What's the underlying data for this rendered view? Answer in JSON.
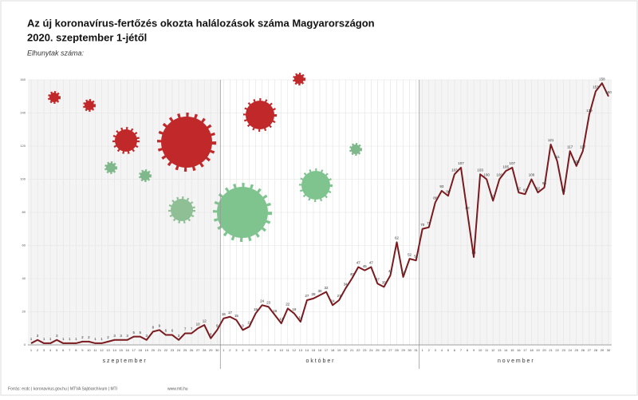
{
  "chart_data": {
    "type": "line",
    "title": [
      "Az új koronavírus-fertőzés okozta halálozások száma Magyarországon",
      "2020. szeptember 1-jétől"
    ],
    "y_label": "Elhunytak száma:",
    "categories": [
      "1",
      "2",
      "3",
      "4",
      "5",
      "6",
      "7",
      "8",
      "9",
      "10",
      "11",
      "12",
      "13",
      "14",
      "15",
      "16",
      "17",
      "18",
      "19",
      "20",
      "21",
      "22",
      "23",
      "24",
      "25",
      "26",
      "27",
      "28",
      "29",
      "30",
      "1",
      "2",
      "3",
      "4",
      "5",
      "6",
      "7",
      "8",
      "9",
      "10",
      "11",
      "12",
      "13",
      "14",
      "15",
      "16",
      "17",
      "18",
      "19",
      "20",
      "21",
      "22",
      "23",
      "24",
      "25",
      "26",
      "27",
      "28",
      "29",
      "30",
      "31",
      "1",
      "2",
      "3",
      "4",
      "5",
      "6",
      "7",
      "8",
      "9",
      "10",
      "11",
      "12",
      "13",
      "14",
      "15",
      "16",
      "17",
      "18",
      "19",
      "20",
      "21",
      "22",
      "23",
      "24",
      "25",
      "26",
      "27",
      "28",
      "29",
      "30"
    ],
    "months": [
      "s z e p t e m b e r",
      "o k t ó b e r",
      "n o v e m b e r"
    ],
    "series": [
      {
        "name": "Elhunytak",
        "color": "#7a1a1e",
        "values": [
          1,
          3,
          1,
          1,
          3,
          1,
          1,
          1,
          2,
          2,
          1,
          1,
          2,
          3,
          3,
          3,
          5,
          5,
          3,
          8,
          9,
          6,
          6,
          3,
          7,
          7,
          10,
          12,
          4,
          9,
          16,
          17,
          15,
          9,
          11,
          19,
          24,
          23,
          18,
          13,
          22,
          19,
          14,
          27,
          28,
          30,
          32,
          24,
          27,
          34,
          40,
          47,
          45,
          47,
          37,
          35,
          42,
          62,
          41,
          52,
          51,
          70,
          71,
          86,
          93,
          90,
          103,
          107,
          80,
          53,
          103,
          100,
          87,
          100,
          105,
          107,
          92,
          91,
          100,
          92,
          95,
          121,
          111,
          91,
          117,
          108,
          117,
          139,
          153,
          158,
          150
        ]
      }
    ],
    "ylim": [
      0,
      160
    ],
    "yticks": [
      0,
      20,
      40,
      60,
      80,
      100,
      120,
      140,
      160
    ],
    "grid": true,
    "source": "Forrás: ecdc | koronavirus.gov.hu | MTVA Sajtóarchívum | MTI",
    "website": "www.mti.hu"
  }
}
